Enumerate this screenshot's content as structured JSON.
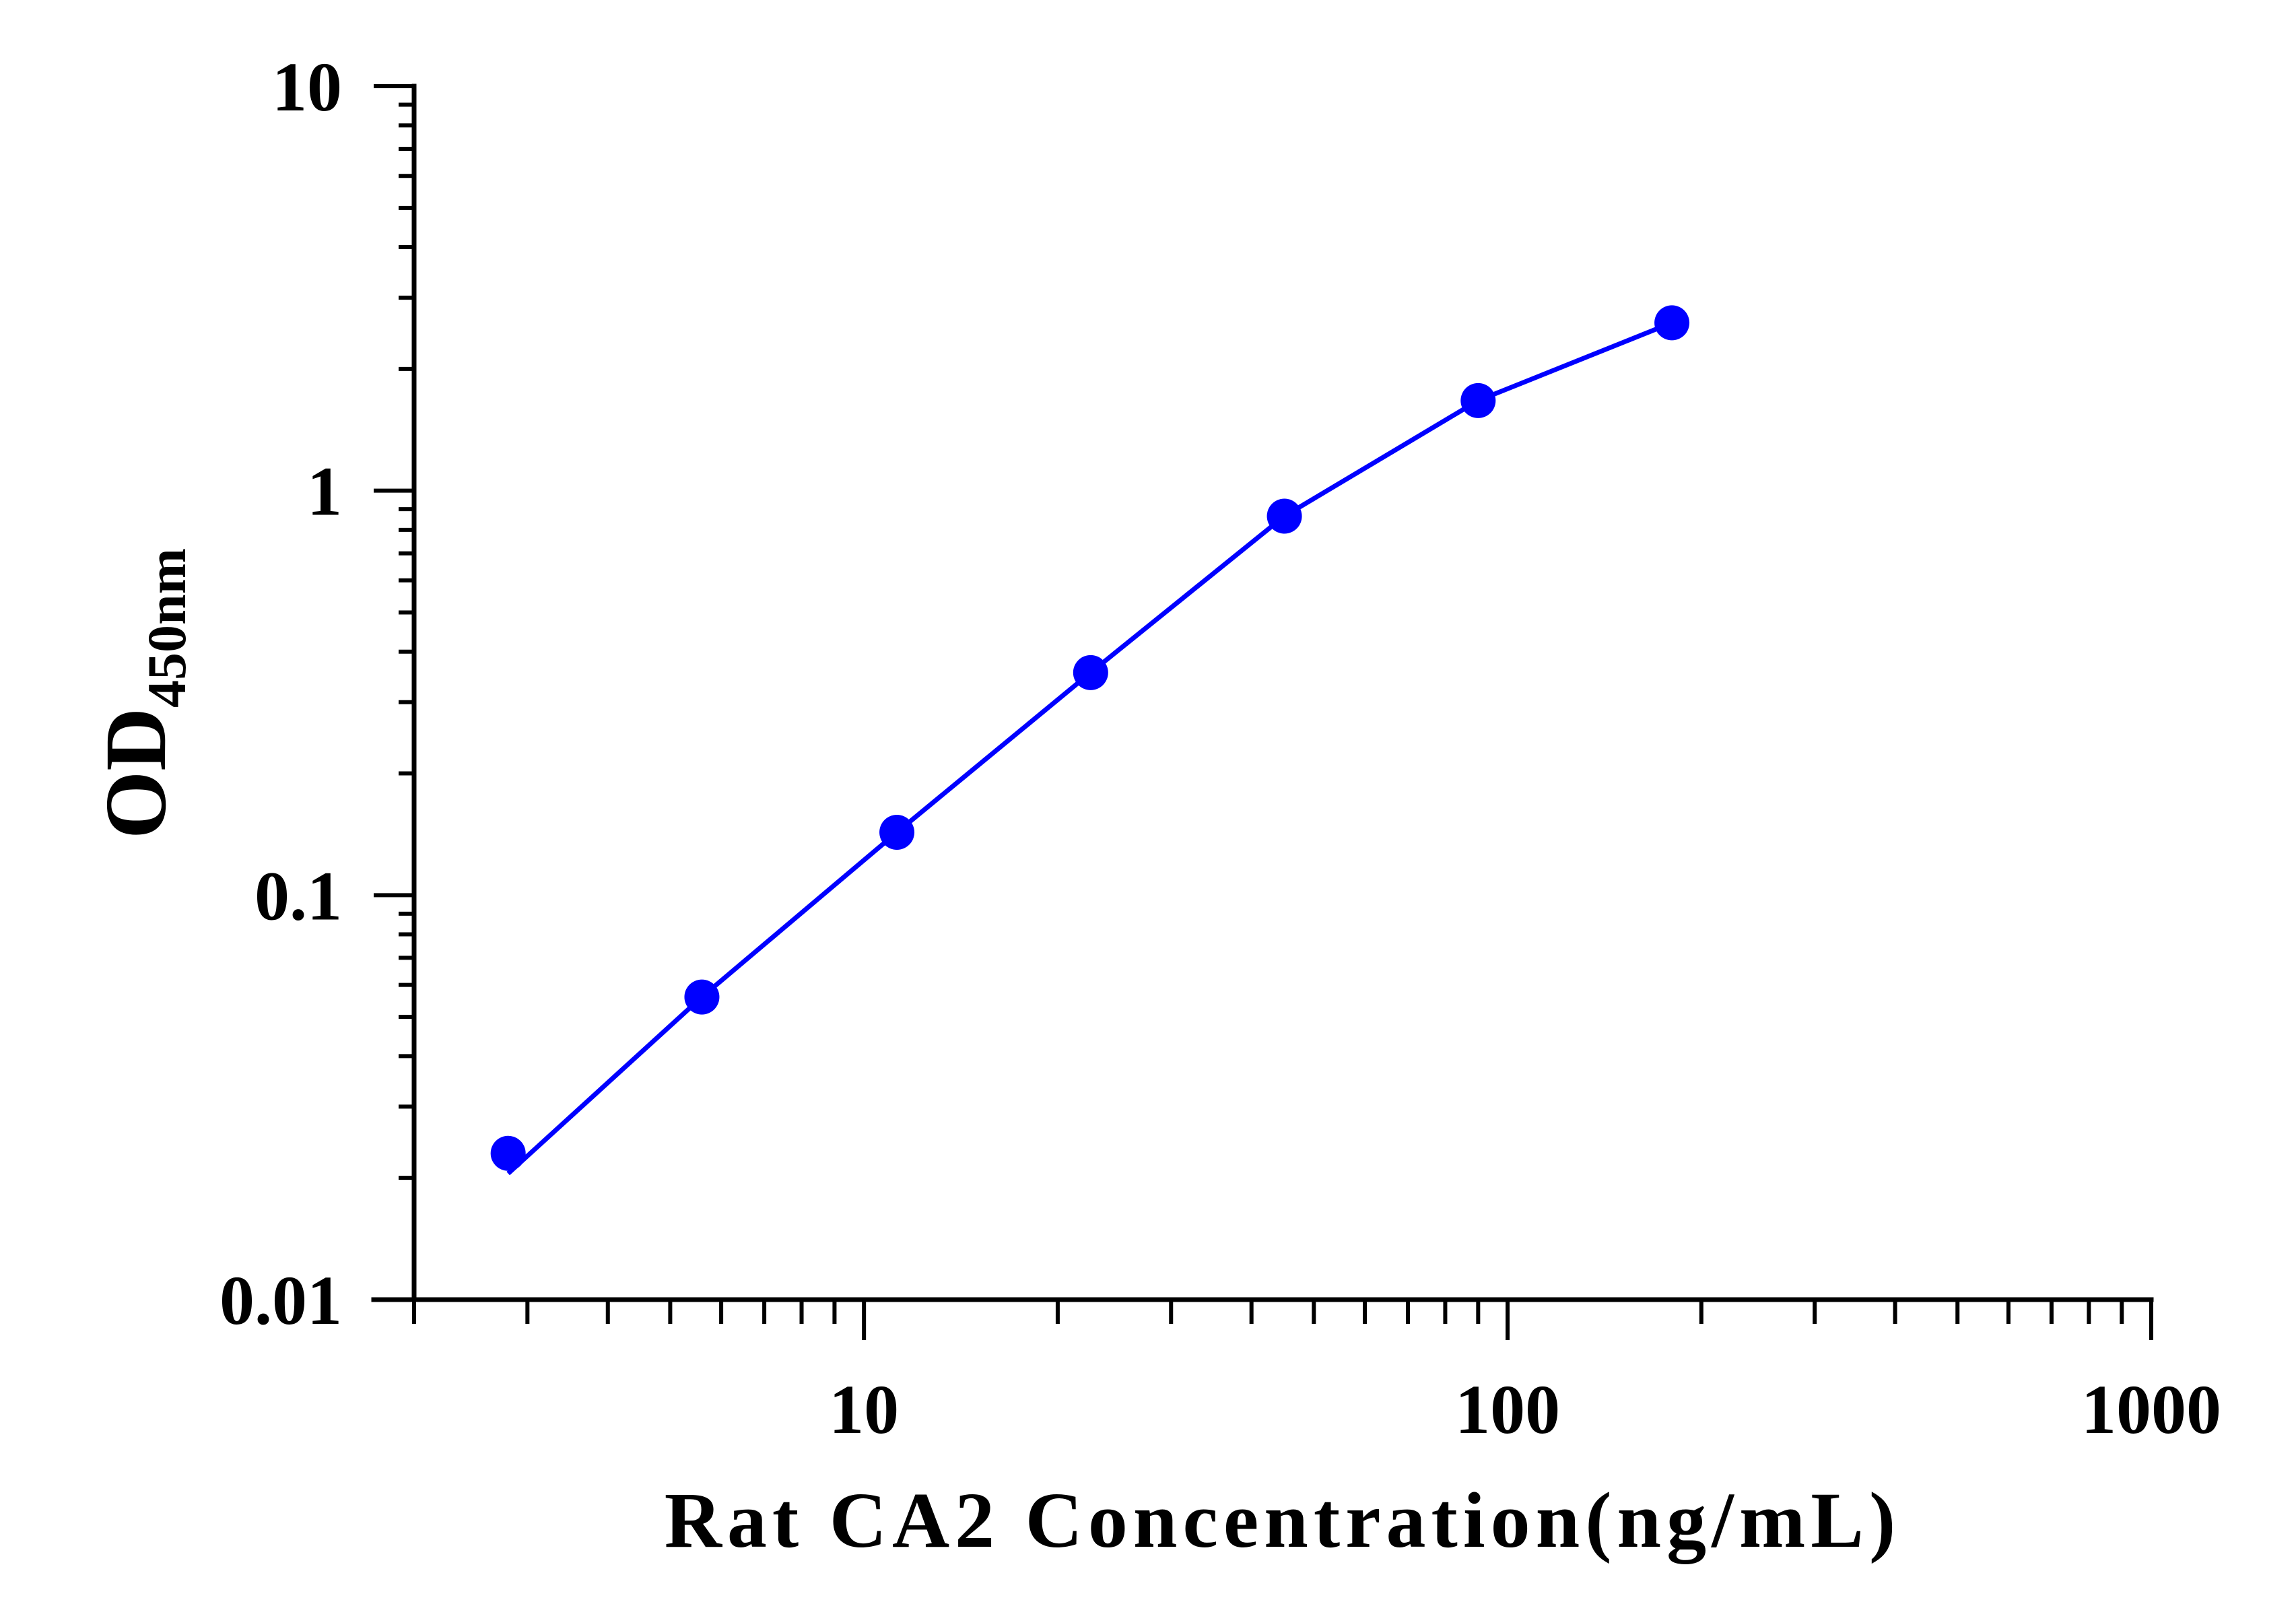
{
  "chart_data": {
    "type": "line",
    "x_scale": "log",
    "y_scale": "log",
    "xlim": [
      2,
      1000
    ],
    "ylim": [
      0.01,
      10
    ],
    "xlabel": "Rat CA2 Concentration(ng/mL)",
    "ylabel": {
      "main": "OD",
      "subscript": "450nm"
    },
    "x_tick_labels": [
      "10",
      "100",
      "1000"
    ],
    "y_tick_labels": [
      "0.01",
      "0.1",
      "1",
      "10"
    ],
    "grid": false,
    "legend": "none",
    "series": [
      {
        "color": "#0000ff",
        "x": [
          2.8,
          5.6,
          11.25,
          22.5,
          45,
          90,
          180
        ],
        "y": [
          0.023,
          0.056,
          0.143,
          0.355,
          0.865,
          1.67,
          2.6
        ]
      }
    ]
  }
}
